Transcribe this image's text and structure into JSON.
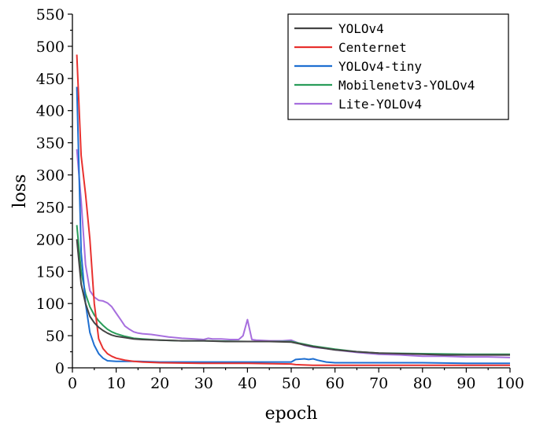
{
  "chart_data": {
    "type": "line",
    "title": "",
    "xlabel": "epoch",
    "ylabel": "loss",
    "xlim": [
      0,
      100
    ],
    "ylim": [
      0,
      550
    ],
    "xticks": [
      0,
      10,
      20,
      30,
      40,
      50,
      60,
      70,
      80,
      90,
      100
    ],
    "yticks": [
      0,
      50,
      100,
      150,
      200,
      250,
      300,
      350,
      400,
      450,
      500,
      550
    ],
    "grid": false,
    "legend_position": "top-right",
    "series": [
      {
        "name": "YOLOv4",
        "color": "#444444",
        "points": [
          [
            1,
            200
          ],
          [
            2,
            130
          ],
          [
            3,
            100
          ],
          [
            4,
            80
          ],
          [
            5,
            70
          ],
          [
            6,
            63
          ],
          [
            7,
            58
          ],
          [
            8,
            54
          ],
          [
            9,
            51
          ],
          [
            10,
            49
          ],
          [
            12,
            47
          ],
          [
            14,
            45
          ],
          [
            16,
            44
          ],
          [
            20,
            43
          ],
          [
            25,
            42
          ],
          [
            30,
            42
          ],
          [
            35,
            41
          ],
          [
            40,
            41
          ],
          [
            45,
            41
          ],
          [
            50,
            40
          ],
          [
            55,
            33
          ],
          [
            60,
            28
          ],
          [
            65,
            25
          ],
          [
            70,
            23
          ],
          [
            75,
            22
          ],
          [
            80,
            21
          ],
          [
            85,
            20
          ],
          [
            90,
            20
          ],
          [
            95,
            20
          ],
          [
            100,
            20
          ]
        ]
      },
      {
        "name": "Centernet",
        "color": "#e8312f",
        "points": [
          [
            1,
            487
          ],
          [
            2,
            330
          ],
          [
            3,
            270
          ],
          [
            4,
            200
          ],
          [
            5,
            100
          ],
          [
            6,
            45
          ],
          [
            7,
            30
          ],
          [
            8,
            22
          ],
          [
            9,
            18
          ],
          [
            10,
            15
          ],
          [
            12,
            12
          ],
          [
            14,
            10
          ],
          [
            16,
            9
          ],
          [
            20,
            8
          ],
          [
            30,
            7
          ],
          [
            40,
            7
          ],
          [
            50,
            6
          ],
          [
            51,
            5
          ],
          [
            55,
            4
          ],
          [
            60,
            4
          ],
          [
            70,
            4
          ],
          [
            80,
            4
          ],
          [
            90,
            4
          ],
          [
            100,
            4
          ]
        ]
      },
      {
        "name": "YOLOv4-tiny",
        "color": "#1f6fd1",
        "points": [
          [
            1,
            437
          ],
          [
            2,
            180
          ],
          [
            3,
            100
          ],
          [
            4,
            55
          ],
          [
            5,
            35
          ],
          [
            6,
            22
          ],
          [
            7,
            15
          ],
          [
            8,
            11
          ],
          [
            10,
            10
          ],
          [
            15,
            10
          ],
          [
            20,
            9
          ],
          [
            30,
            9
          ],
          [
            40,
            9
          ],
          [
            50,
            9
          ],
          [
            51,
            13
          ],
          [
            53,
            14
          ],
          [
            54,
            13
          ],
          [
            55,
            14
          ],
          [
            56,
            12
          ],
          [
            58,
            9
          ],
          [
            60,
            8
          ],
          [
            70,
            8
          ],
          [
            80,
            8
          ],
          [
            90,
            7
          ],
          [
            100,
            7
          ]
        ]
      },
      {
        "name": "Mobilenetv3-YOLOv4",
        "color": "#2a9d5a",
        "points": [
          [
            1,
            222
          ],
          [
            2,
            150
          ],
          [
            3,
            115
          ],
          [
            4,
            95
          ],
          [
            5,
            82
          ],
          [
            6,
            73
          ],
          [
            7,
            66
          ],
          [
            8,
            60
          ],
          [
            9,
            56
          ],
          [
            10,
            53
          ],
          [
            12,
            49
          ],
          [
            14,
            46
          ],
          [
            16,
            45
          ],
          [
            20,
            43
          ],
          [
            25,
            42
          ],
          [
            30,
            42
          ],
          [
            40,
            41
          ],
          [
            45,
            41
          ],
          [
            50,
            41
          ],
          [
            55,
            34
          ],
          [
            60,
            29
          ],
          [
            65,
            25
          ],
          [
            70,
            23
          ],
          [
            80,
            22
          ],
          [
            90,
            21
          ],
          [
            100,
            21
          ]
        ]
      },
      {
        "name": "Lite-YOLOv4",
        "color": "#a76fde",
        "points": [
          [
            1,
            340
          ],
          [
            2,
            260
          ],
          [
            3,
            160
          ],
          [
            4,
            120
          ],
          [
            5,
            110
          ],
          [
            6,
            105
          ],
          [
            7,
            104
          ],
          [
            8,
            101
          ],
          [
            9,
            95
          ],
          [
            10,
            85
          ],
          [
            11,
            75
          ],
          [
            12,
            65
          ],
          [
            13,
            60
          ],
          [
            14,
            56
          ],
          [
            15,
            54
          ],
          [
            16,
            53
          ],
          [
            18,
            52
          ],
          [
            20,
            50
          ],
          [
            22,
            48
          ],
          [
            25,
            46
          ],
          [
            28,
            45
          ],
          [
            30,
            44
          ],
          [
            31,
            46
          ],
          [
            32,
            45
          ],
          [
            34,
            45
          ],
          [
            36,
            44
          ],
          [
            38,
            44
          ],
          [
            39,
            50
          ],
          [
            40,
            75
          ],
          [
            41,
            44
          ],
          [
            42,
            43
          ],
          [
            45,
            42
          ],
          [
            48,
            42
          ],
          [
            50,
            43
          ],
          [
            53,
            35
          ],
          [
            55,
            32
          ],
          [
            58,
            30
          ],
          [
            60,
            28
          ],
          [
            65,
            24
          ],
          [
            70,
            21
          ],
          [
            75,
            20
          ],
          [
            80,
            18
          ],
          [
            85,
            18
          ],
          [
            90,
            17
          ],
          [
            95,
            17
          ],
          [
            100,
            16
          ]
        ]
      }
    ]
  }
}
